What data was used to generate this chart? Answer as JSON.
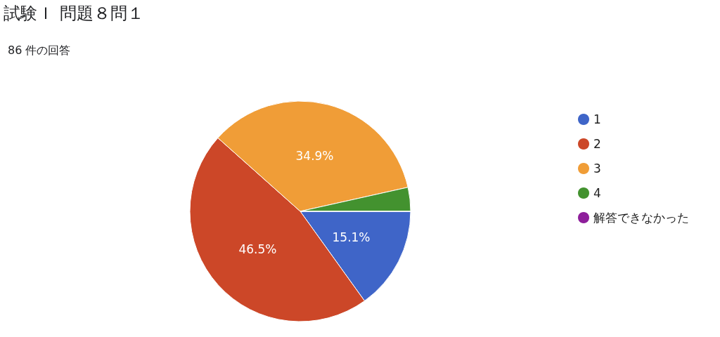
{
  "chart_data": {
    "type": "pie",
    "title": "試験Ｉ 問題８問１",
    "subtitle": "86 件の回答",
    "categories": [
      "1",
      "2",
      "3",
      "4",
      "解答できなかった"
    ],
    "values": [
      15.1,
      46.5,
      34.9,
      3.5,
      0
    ],
    "colors": [
      "#3f65c8",
      "#cc4728",
      "#f09d37",
      "#43922f",
      "#8e1f9b"
    ],
    "value_labels": [
      "15.1%",
      "46.5%",
      "34.9%",
      null,
      null
    ],
    "legend": "right"
  }
}
